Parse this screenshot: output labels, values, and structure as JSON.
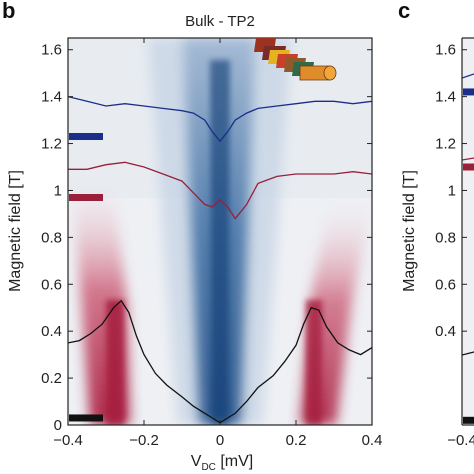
{
  "panels": {
    "left_letter": "b",
    "right_letter": "c"
  },
  "chart_data": [
    {
      "type": "heatmap",
      "title": "Bulk - TP2",
      "xlabel_main": "V",
      "xlabel_sub": "DC",
      "xlabel_unit": " [mV]",
      "ylabel": "Magnetic field [T]",
      "xlim": [
        -0.4,
        0.4
      ],
      "ylim": [
        0,
        1.65
      ],
      "x_ticks": [
        -0.4,
        -0.2,
        0,
        0.2,
        0.4
      ],
      "x_tick_labels": [
        "−0.4",
        "−0.2",
        "0",
        "0.2",
        "0.4"
      ],
      "y_ticks": [
        0,
        0.2,
        0.4,
        0.6,
        0.8,
        1,
        1.2,
        1.4,
        1.6
      ],
      "y_tick_labels": [
        "0",
        "0.2",
        "0.4",
        "0.6",
        "0.8",
        "1",
        "1.2",
        "1.4",
        "1.6"
      ],
      "colormap": {
        "negative": "#1f4f8f",
        "zero": "#f4f4f6",
        "positive": "#b3203f"
      },
      "heatmap_features": [
        {
          "kind": "dip-fan",
          "x_center": 0.0,
          "half_width_at_B0": 0.04,
          "half_width_at_Bmax": 0.1,
          "sign": "negative"
        },
        {
          "kind": "coherence-peak",
          "x_center": -0.255,
          "b_range": [
            0,
            0.65
          ],
          "sign": "positive"
        },
        {
          "kind": "coherence-peak",
          "x_center": 0.255,
          "b_range": [
            0,
            0.6
          ],
          "sign": "positive"
        }
      ],
      "series": [
        {
          "color": "#1a2e8a",
          "marker_b": 1.23,
          "x": [
            -0.4,
            -0.35,
            -0.3,
            -0.25,
            -0.2,
            -0.15,
            -0.1,
            -0.07,
            -0.04,
            -0.02,
            0.0,
            0.02,
            0.04,
            0.07,
            0.1,
            0.15,
            0.2,
            0.25,
            0.3,
            0.35,
            0.4
          ],
          "y": [
            1.4,
            1.38,
            1.36,
            1.37,
            1.36,
            1.35,
            1.34,
            1.33,
            1.3,
            1.25,
            1.21,
            1.25,
            1.3,
            1.33,
            1.35,
            1.36,
            1.37,
            1.38,
            1.38,
            1.37,
            1.38
          ]
        },
        {
          "color": "#9a1f3b",
          "marker_b": 0.97,
          "x": [
            -0.4,
            -0.35,
            -0.3,
            -0.25,
            -0.2,
            -0.15,
            -0.1,
            -0.07,
            -0.04,
            -0.02,
            0.0,
            0.02,
            0.04,
            0.07,
            0.1,
            0.15,
            0.2,
            0.25,
            0.3,
            0.35,
            0.4
          ],
          "y": [
            1.09,
            1.09,
            1.11,
            1.12,
            1.1,
            1.07,
            1.04,
            0.99,
            0.94,
            0.93,
            0.96,
            0.93,
            0.88,
            0.94,
            1.03,
            1.06,
            1.07,
            1.07,
            1.07,
            1.08,
            1.07
          ]
        },
        {
          "color": "#111111",
          "marker_b": 0.03,
          "x": [
            -0.4,
            -0.37,
            -0.34,
            -0.31,
            -0.28,
            -0.26,
            -0.24,
            -0.22,
            -0.2,
            -0.17,
            -0.14,
            -0.1,
            -0.07,
            -0.04,
            -0.02,
            0.0,
            0.02,
            0.04,
            0.07,
            0.1,
            0.14,
            0.17,
            0.2,
            0.22,
            0.24,
            0.26,
            0.28,
            0.31,
            0.34,
            0.37,
            0.4
          ],
          "y": [
            0.35,
            0.36,
            0.39,
            0.43,
            0.5,
            0.53,
            0.48,
            0.38,
            0.3,
            0.22,
            0.17,
            0.12,
            0.08,
            0.05,
            0.03,
            0.01,
            0.03,
            0.05,
            0.1,
            0.16,
            0.21,
            0.27,
            0.34,
            0.43,
            0.5,
            0.49,
            0.42,
            0.35,
            0.32,
            0.3,
            0.33
          ]
        }
      ]
    },
    {
      "type": "heatmap",
      "partial": true,
      "y_ticks": [
        0.4,
        0.6,
        0.8,
        1,
        1.2,
        1.4,
        1.6
      ],
      "y_tick_labels": [
        "0.4",
        "0.6",
        "0.8",
        "1",
        "1.2",
        "1.4",
        "1.6"
      ],
      "ylabel": "Magnetic field [T]",
      "x_tick_partial": "−0.4",
      "series_marker_colors": [
        "#1a2e8a",
        "#9a1f3b",
        "#111111"
      ],
      "series_marker_b": [
        1.42,
        1.1,
        0.02
      ]
    }
  ]
}
